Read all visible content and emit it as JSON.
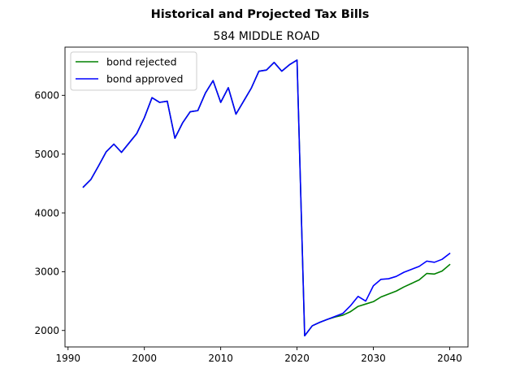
{
  "chart_data": {
    "type": "line",
    "suptitle": "Historical and Projected Tax Bills",
    "title": "584 MIDDLE ROAD",
    "xlabel": "",
    "ylabel": "",
    "xlim": [
      1989.6,
      2042.4
    ],
    "ylim": [
      1720,
      6820
    ],
    "xticks": [
      1990,
      2000,
      2010,
      2020,
      2030,
      2040
    ],
    "yticks": [
      2000,
      3000,
      4000,
      5000,
      6000
    ],
    "grid": false,
    "legend": "upper left",
    "series": [
      {
        "name": "bond rejected",
        "color": "#008000",
        "x": [
          1992,
          1993,
          1994,
          1995,
          1996,
          1997,
          1998,
          1999,
          2000,
          2001,
          2002,
          2003,
          2004,
          2005,
          2006,
          2007,
          2008,
          2009,
          2010,
          2011,
          2012,
          2013,
          2014,
          2015,
          2016,
          2017,
          2018,
          2019,
          2020,
          2021,
          2022,
          2023,
          2024,
          2025,
          2026,
          2027,
          2028,
          2029,
          2030,
          2031,
          2032,
          2033,
          2034,
          2035,
          2036,
          2037,
          2038,
          2039,
          2040
        ],
        "values": [
          4440,
          4570,
          4800,
          5040,
          5170,
          5030,
          5190,
          5350,
          5620,
          5960,
          5880,
          5900,
          5270,
          5530,
          5720,
          5740,
          6040,
          6250,
          5880,
          6130,
          5680,
          5900,
          6120,
          6410,
          6430,
          6560,
          6410,
          6520,
          6600,
          1910,
          2080,
          2140,
          2190,
          2230,
          2260,
          2320,
          2410,
          2450,
          2490,
          2570,
          2620,
          2670,
          2740,
          2800,
          2860,
          2970,
          2960,
          3010,
          3120
        ]
      },
      {
        "name": "bond approved",
        "color": "#0000ff",
        "x": [
          1992,
          1993,
          1994,
          1995,
          1996,
          1997,
          1998,
          1999,
          2000,
          2001,
          2002,
          2003,
          2004,
          2005,
          2006,
          2007,
          2008,
          2009,
          2010,
          2011,
          2012,
          2013,
          2014,
          2015,
          2016,
          2017,
          2018,
          2019,
          2020,
          2021,
          2022,
          2023,
          2024,
          2025,
          2026,
          2027,
          2028,
          2029,
          2030,
          2031,
          2032,
          2033,
          2034,
          2035,
          2036,
          2037,
          2038,
          2039,
          2040
        ],
        "values": [
          4440,
          4570,
          4800,
          5040,
          5170,
          5030,
          5190,
          5350,
          5620,
          5960,
          5880,
          5900,
          5270,
          5530,
          5720,
          5740,
          6040,
          6250,
          5880,
          6130,
          5680,
          5900,
          6120,
          6410,
          6430,
          6560,
          6410,
          6520,
          6600,
          1910,
          2080,
          2140,
          2190,
          2240,
          2290,
          2420,
          2580,
          2500,
          2760,
          2870,
          2880,
          2920,
          2990,
          3040,
          3090,
          3180,
          3160,
          3210,
          3310
        ]
      }
    ]
  }
}
